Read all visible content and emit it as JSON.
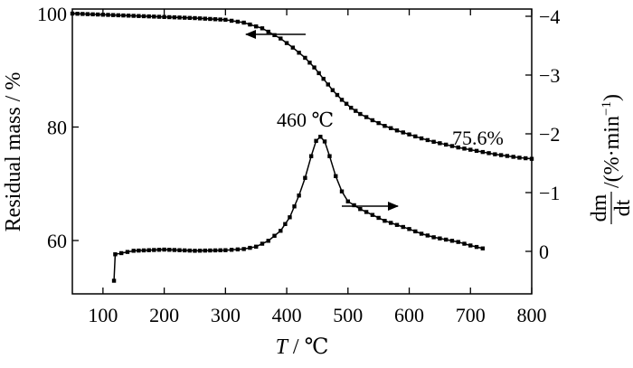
{
  "chart_data": {
    "type": "line",
    "xlabel_var": "T",
    "xlabel_unit": " / ℃",
    "ylabel_left": "Residual mass / %",
    "ylabel_right_num": "dm",
    "ylabel_right_den": "dt",
    "ylabel_right_unit": "/(%·min",
    "ylabel_right_exp": "−1",
    "ylabel_right_close": ")",
    "xlim": [
      50,
      800
    ],
    "ylim_left": [
      52,
      100
    ],
    "ylim_right": [
      -4,
      0.6
    ],
    "x_ticks": [
      100,
      200,
      300,
      400,
      500,
      600,
      700,
      800
    ],
    "x_tick_labels": [
      "100",
      "200",
      "300",
      "400",
      "500",
      "600",
      "700",
      "800"
    ],
    "y_left_ticks": [
      60,
      80,
      100
    ],
    "y_left_tick_labels": [
      "60",
      "80",
      "100"
    ],
    "y_right_ticks": [
      0,
      -1,
      -2,
      -3,
      -4
    ],
    "y_right_tick_labels": [
      "0",
      "−1",
      "−2",
      "−3",
      "−4"
    ],
    "annotations": {
      "peak_label": "460 ℃",
      "residual_label": "75.6%"
    },
    "series": [
      {
        "axis": "left",
        "points": [
          [
            50,
            100
          ],
          [
            100,
            99.8
          ],
          [
            150,
            99.6
          ],
          [
            200,
            99.4
          ],
          [
            250,
            99.2
          ],
          [
            300,
            98.9
          ],
          [
            330,
            98.4
          ],
          [
            360,
            97.4
          ],
          [
            390,
            95.6
          ],
          [
            410,
            94.0
          ],
          [
            430,
            92.2
          ],
          [
            445,
            90.5
          ],
          [
            460,
            88.5
          ],
          [
            475,
            86.5
          ],
          [
            490,
            84.8
          ],
          [
            505,
            83.4
          ],
          [
            520,
            82.3
          ],
          [
            540,
            81.2
          ],
          [
            560,
            80.2
          ],
          [
            580,
            79.4
          ],
          [
            600,
            78.7
          ],
          [
            620,
            78.0
          ],
          [
            640,
            77.4
          ],
          [
            660,
            76.9
          ],
          [
            680,
            76.4
          ],
          [
            700,
            76.0
          ],
          [
            720,
            75.6
          ],
          [
            740,
            75.2
          ],
          [
            760,
            74.9
          ],
          [
            780,
            74.6
          ],
          [
            800,
            74.4
          ]
        ]
      },
      {
        "axis": "right",
        "points": [
          [
            118,
            0.5
          ],
          [
            120,
            0.05
          ],
          [
            150,
            -0.01
          ],
          [
            200,
            -0.03
          ],
          [
            250,
            -0.01
          ],
          [
            300,
            -0.02
          ],
          [
            330,
            -0.04
          ],
          [
            350,
            -0.08
          ],
          [
            370,
            -0.18
          ],
          [
            390,
            -0.35
          ],
          [
            405,
            -0.58
          ],
          [
            420,
            -0.95
          ],
          [
            430,
            -1.25
          ],
          [
            440,
            -1.62
          ],
          [
            448,
            -1.88
          ],
          [
            455,
            -1.95
          ],
          [
            462,
            -1.87
          ],
          [
            470,
            -1.62
          ],
          [
            480,
            -1.28
          ],
          [
            490,
            -1.02
          ],
          [
            500,
            -0.85
          ],
          [
            520,
            -0.72
          ],
          [
            540,
            -0.62
          ],
          [
            560,
            -0.52
          ],
          [
            580,
            -0.45
          ],
          [
            600,
            -0.38
          ],
          [
            620,
            -0.3
          ],
          [
            640,
            -0.24
          ],
          [
            660,
            -0.2
          ],
          [
            680,
            -0.16
          ],
          [
            700,
            -0.1
          ],
          [
            720,
            -0.05
          ]
        ]
      }
    ]
  }
}
